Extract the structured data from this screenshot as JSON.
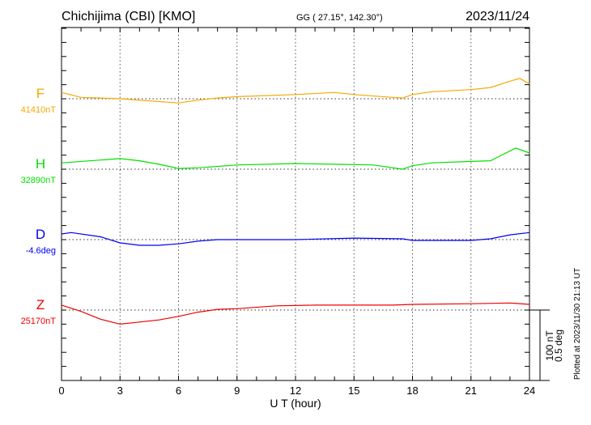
{
  "chart_data": {
    "type": "line",
    "title": "Chichijima (CBI)  [KMO]",
    "subtitle": "GG ( 27.15°, 142.30°)",
    "date": "2023/11/24",
    "xlabel": "U T (hour)",
    "xlim": [
      0,
      24
    ],
    "xticks": [
      "0",
      "3",
      "6",
      "9",
      "12",
      "15",
      "18",
      "21",
      "24"
    ],
    "grid": "dotted vertical every 3 h, dotted baseline per component",
    "scale_label": [
      "100 nT",
      "0.5 deg"
    ],
    "footer": "Plotted at 2023/11/30 21:13 UT",
    "series": [
      {
        "name": "F",
        "baseline_label": "41410nT",
        "color": "#f5a800",
        "unit": "nT",
        "x": [
          0,
          1,
          3,
          6,
          7,
          8,
          9,
          12,
          14,
          15,
          17,
          17.5,
          18,
          19,
          21,
          22,
          23,
          23.5,
          24
        ],
        "y": [
          9,
          2,
          0,
          -6,
          -2,
          1,
          3,
          6,
          9,
          6,
          2,
          1,
          6,
          10,
          13,
          16,
          25,
          29,
          21
        ]
      },
      {
        "name": "H",
        "baseline_label": "32890nT",
        "color": "#00e000",
        "unit": "nT",
        "x": [
          0,
          2,
          3,
          4,
          5,
          6,
          7,
          9,
          12,
          14,
          16,
          17.5,
          18,
          19,
          21,
          22,
          22.5,
          23.3,
          24
        ],
        "y": [
          9,
          13,
          15,
          12,
          7,
          1,
          2,
          6,
          8,
          7,
          6,
          0,
          5,
          9,
          11,
          12,
          19,
          30,
          23
        ]
      },
      {
        "name": "D",
        "baseline_label": "-4.6deg",
        "color": "#0000f0",
        "unit": "deg",
        "x": [
          0,
          0.5,
          2,
          3,
          4,
          5,
          6,
          7,
          8,
          12,
          15,
          17.5,
          18,
          21,
          22,
          23,
          24
        ],
        "y": [
          0.04,
          0.05,
          0.02,
          -0.023,
          -0.04,
          -0.04,
          -0.03,
          -0.011,
          0,
          0,
          0.011,
          0.006,
          -0.006,
          -0.006,
          0.006,
          0.034,
          0.05
        ]
      },
      {
        "name": "Z",
        "baseline_label": "25170nT",
        "color": "#f00000",
        "unit": "nT",
        "x": [
          0,
          1,
          2,
          3,
          4,
          5,
          6,
          7,
          8,
          9,
          11,
          13,
          15,
          17,
          18,
          21,
          23,
          24
        ],
        "y": [
          7,
          -2,
          -13,
          -20,
          -17,
          -14,
          -9,
          -3,
          1,
          2,
          6,
          7,
          7,
          7,
          8,
          9,
          10,
          8
        ]
      }
    ]
  }
}
